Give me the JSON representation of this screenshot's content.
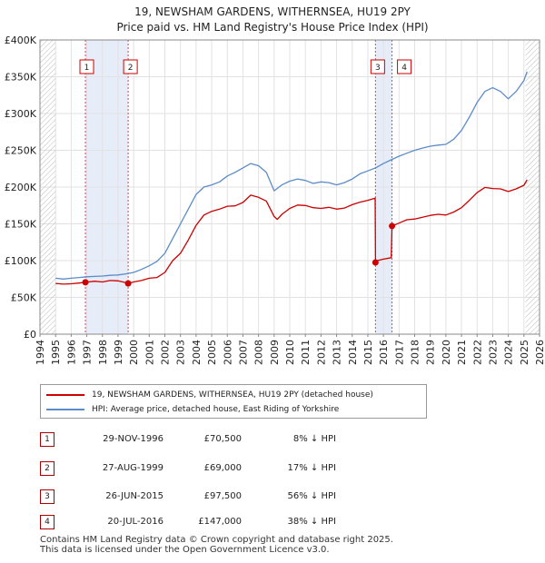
{
  "title_line1": "19, NEWSHAM GARDENS, WITHERNSEA, HU19 2PY",
  "title_line2": "Price paid vs. HM Land Registry's House Price Index (HPI)",
  "chart_data": {
    "type": "line",
    "title": "19, NEWSHAM GARDENS, WITHERNSEA, HU19 2PY",
    "subtitle": "Price paid vs. HM Land Registry's House Price Index (HPI)",
    "xlim": [
      1994,
      2026
    ],
    "ylim": [
      0,
      400000
    ],
    "x_ticks": [
      "1994",
      "1995",
      "1996",
      "1997",
      "1998",
      "1999",
      "2000",
      "2001",
      "2002",
      "2003",
      "2004",
      "2005",
      "2006",
      "2007",
      "2008",
      "2009",
      "2010",
      "2011",
      "2012",
      "2013",
      "2014",
      "2015",
      "2016",
      "2017",
      "2018",
      "2019",
      "2020",
      "2021",
      "2022",
      "2023",
      "2024",
      "2025",
      "2026"
    ],
    "y_ticks": [
      {
        "value": 0,
        "label": "£0"
      },
      {
        "value": 50000,
        "label": "£50K"
      },
      {
        "value": 100000,
        "label": "£100K"
      },
      {
        "value": 150000,
        "label": "£150K"
      },
      {
        "value": 200000,
        "label": "£200K"
      },
      {
        "value": 250000,
        "label": "£250K"
      },
      {
        "value": 300000,
        "label": "£300K"
      },
      {
        "value": 350000,
        "label": "£350K"
      },
      {
        "value": 400000,
        "label": "£400K"
      }
    ],
    "grid": true,
    "series": [
      {
        "name": "19, NEWSHAM GARDENS, WITHERNSEA, HU19 2PY (detached house)",
        "color": "#cc0000",
        "x": [
          1995,
          1995.5,
          1996,
          1996.5,
          1996.91,
          1997.5,
          1998,
          1998.5,
          1999,
          1999.5,
          1999.65,
          2000,
          2000.5,
          2001,
          2001.5,
          2002,
          2002.5,
          2003,
          2003.5,
          2004,
          2004.5,
          2005,
          2005.5,
          2006,
          2006.5,
          2007,
          2007.5,
          2008,
          2008.5,
          2009,
          2009.2,
          2009.5,
          2010,
          2010.5,
          2011,
          2011.5,
          2012,
          2012.5,
          2013,
          2013.5,
          2014,
          2014.5,
          2015,
          2015.47,
          2015.49,
          2015.6,
          2016,
          2016.5,
          2016.55,
          2017,
          2017.5,
          2018,
          2018.5,
          2019,
          2019.5,
          2020,
          2020.5,
          2021,
          2021.5,
          2022,
          2022.5,
          2023,
          2023.5,
          2024,
          2024.5,
          2025,
          2025.2
        ],
        "y": [
          69000,
          68000,
          68500,
          69500,
          70500,
          72000,
          71000,
          73000,
          72500,
          70000,
          69000,
          71000,
          73000,
          76000,
          77000,
          84000,
          100000,
          110000,
          128000,
          148000,
          162000,
          167000,
          170000,
          174000,
          174500,
          179000,
          189000,
          186000,
          181000,
          160000,
          156000,
          163000,
          171000,
          175500,
          175000,
          172000,
          171000,
          172500,
          170000,
          171500,
          176000,
          179500,
          182000,
          185000,
          97500,
          100000,
          102000,
          104000,
          147000,
          151000,
          155500,
          156500,
          159000,
          161500,
          163000,
          162000,
          166000,
          172000,
          182000,
          192500,
          199500,
          198000,
          197500,
          194000,
          197500,
          202500,
          210000
        ]
      },
      {
        "name": "HPI: Average price, detached house, East Riding of Yorkshire",
        "color": "#5b8cc8",
        "x": [
          1995,
          1995.5,
          1996,
          1996.5,
          1997,
          1997.5,
          1998,
          1998.5,
          1999,
          1999.5,
          2000,
          2000.5,
          2001,
          2001.5,
          2002,
          2002.5,
          2003,
          2003.5,
          2004,
          2004.5,
          2005,
          2005.5,
          2006,
          2006.5,
          2007,
          2007.5,
          2008,
          2008.5,
          2009,
          2009.5,
          2010,
          2010.5,
          2011,
          2011.5,
          2012,
          2012.5,
          2013,
          2013.5,
          2014,
          2014.5,
          2015,
          2015.5,
          2016,
          2016.5,
          2017,
          2017.5,
          2018,
          2018.5,
          2019,
          2019.5,
          2020,
          2020.5,
          2021,
          2021.5,
          2022,
          2022.5,
          2023,
          2023.5,
          2024,
          2024.5,
          2025,
          2025.2
        ],
        "y": [
          76000,
          75000,
          76000,
          77000,
          78000,
          78500,
          79000,
          80000,
          80500,
          82000,
          84000,
          88000,
          93000,
          99000,
          110000,
          130000,
          150000,
          170000,
          190000,
          200000,
          203000,
          207000,
          215000,
          220000,
          226000,
          232000,
          229000,
          220000,
          195000,
          203000,
          208000,
          211000,
          209000,
          205000,
          207000,
          206000,
          203000,
          206000,
          211000,
          218000,
          222000,
          226000,
          232000,
          237000,
          242000,
          246000,
          250000,
          253000,
          255500,
          257000,
          258000,
          265000,
          277000,
          295000,
          315000,
          330000,
          335000,
          330000,
          320000,
          330000,
          345000,
          357000
        ]
      }
    ],
    "transactions": [
      {
        "num": "1",
        "x": 1996.91,
        "price": 70500
      },
      {
        "num": "2",
        "x": 1999.65,
        "price": 69000
      },
      {
        "num": "3",
        "x": 2015.49,
        "price": 97500
      },
      {
        "num": "4",
        "x": 2016.55,
        "price": 147000
      }
    ],
    "shaded_ranges": [
      [
        1996.91,
        1999.65
      ],
      [
        2015.49,
        2016.55
      ]
    ],
    "legend_position": "below"
  },
  "legend": {
    "property_label": "19, NEWSHAM GARDENS, WITHERNSEA, HU19 2PY (detached house)",
    "hpi_label": "HPI: Average price, detached house, East Riding of Yorkshire",
    "property_color": "#cc0000",
    "hpi_color": "#5b8cc8"
  },
  "transactions_table": [
    {
      "num": "1",
      "date": "29-NOV-1996",
      "price": "£70,500",
      "hpi": "8% ↓ HPI"
    },
    {
      "num": "2",
      "date": "27-AUG-1999",
      "price": "£69,000",
      "hpi": "17% ↓ HPI"
    },
    {
      "num": "3",
      "date": "26-JUN-2015",
      "price": "£97,500",
      "hpi": "56% ↓ HPI"
    },
    {
      "num": "4",
      "date": "20-JUL-2016",
      "price": "£147,000",
      "hpi": "38% ↓ HPI"
    }
  ],
  "footer": {
    "line1": "Contains HM Land Registry data © Crown copyright and database right 2025.",
    "line2": "This data is licensed under the Open Government Licence v3.0."
  }
}
